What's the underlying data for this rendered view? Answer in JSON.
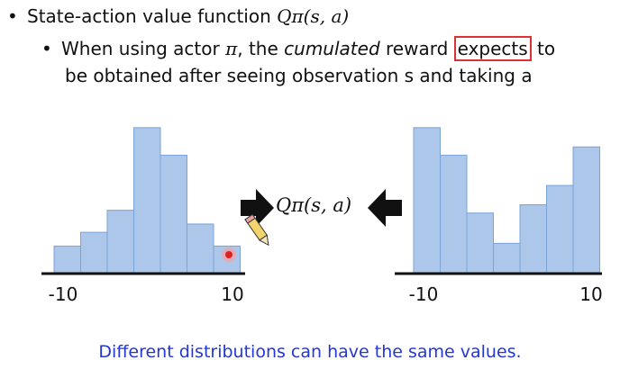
{
  "bullets": {
    "main_prefix": "State-action value function ",
    "main_math": "Qπ(s, a)",
    "sub_part1": "When using actor ",
    "sub_math": "π",
    "sub_part2": ", the ",
    "sub_italic": "cumulated",
    "sub_part3": " reward ",
    "sub_boxed": "expects",
    "sub_part4": " to",
    "sub_line2": "be obtained after seeing observation s and taking a"
  },
  "center_label": "Qπ(s, a)",
  "caption": "Different distributions can have the same values.",
  "colors": {
    "bar_fill": "#adc7ea",
    "bar_stroke": "#7aa3d8",
    "caption": "#2336d6",
    "highlight": "#e03030"
  },
  "icons": [
    "arrow-right-icon",
    "arrow-left-icon",
    "pencil-icon",
    "pointer-dot-icon"
  ],
  "chart_data": [
    {
      "type": "bar",
      "x_ticks": [
        "-10",
        "10"
      ],
      "values": [
        2,
        3,
        4.6,
        10.6,
        8.6,
        3.6,
        2
      ]
    },
    {
      "type": "bar",
      "x_ticks": [
        "-10",
        "10"
      ],
      "values": [
        10.6,
        8.6,
        4.4,
        2.2,
        5,
        6.4,
        9.2
      ]
    }
  ]
}
